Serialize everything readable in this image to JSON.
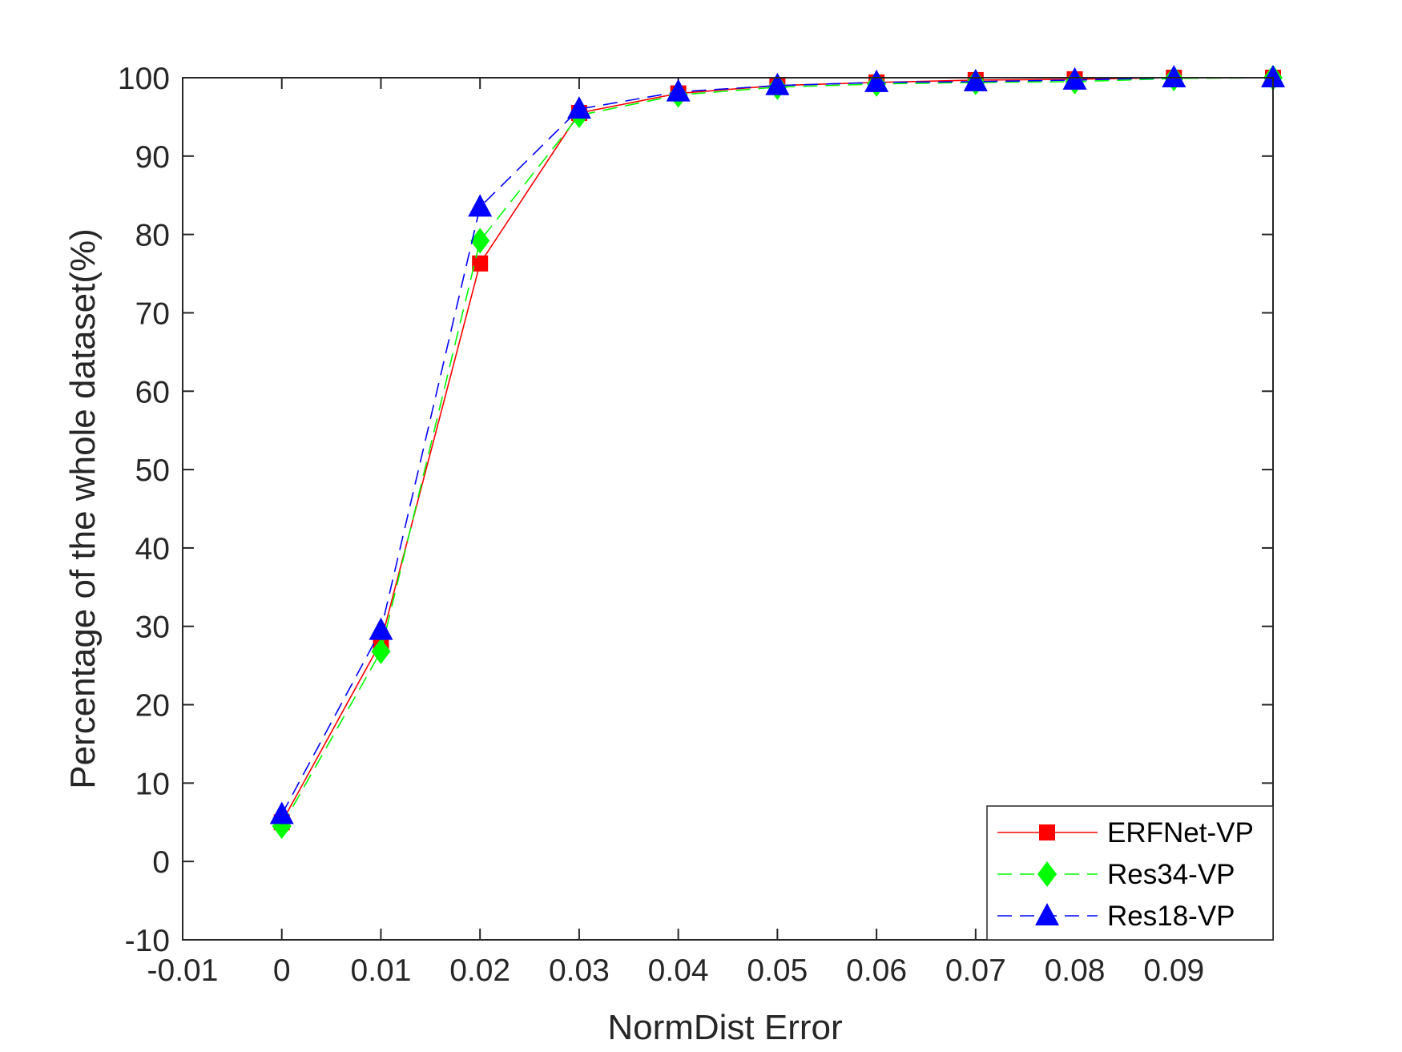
{
  "chart_data": {
    "type": "line",
    "title": "",
    "xlabel": "NormDist Error",
    "ylabel": "Percentage of the whole dataset(%)",
    "xlim": [
      -0.01,
      0.1
    ],
    "ylim": [
      -10,
      100
    ],
    "xticks": [
      -0.01,
      0,
      0.01,
      0.02,
      0.03,
      0.04,
      0.05,
      0.06,
      0.07,
      0.08,
      0.09
    ],
    "xtick_labels": [
      "-0.01",
      "0",
      "0.01",
      "0.02",
      "0.03",
      "0.04",
      "0.05",
      "0.06",
      "0.07",
      "0.08",
      "0.09"
    ],
    "yticks": [
      -10,
      0,
      10,
      20,
      30,
      40,
      50,
      60,
      70,
      80,
      90,
      100
    ],
    "ytick_labels": [
      "-10",
      "0",
      "10",
      "20",
      "30",
      "40",
      "50",
      "60",
      "70",
      "80",
      "90",
      "100"
    ],
    "grid": false,
    "legend_position": "bottom-right",
    "x": [
      0,
      0.01,
      0.02,
      0.03,
      0.04,
      0.05,
      0.06,
      0.07,
      0.08,
      0.09,
      0.1
    ],
    "series": [
      {
        "name": "ERFNet-VP",
        "color": "#ff0000",
        "marker": "square",
        "line_style": "solid",
        "values": [
          5.0,
          28.0,
          76.3,
          95.5,
          98.0,
          99.0,
          99.4,
          99.7,
          99.8,
          100.0,
          100.0
        ]
      },
      {
        "name": "Res34-VP",
        "color": "#00ff00",
        "marker": "diamond",
        "line_style": "dashed",
        "values": [
          4.5,
          26.8,
          79.2,
          95.2,
          97.8,
          98.8,
          99.2,
          99.4,
          99.5,
          99.9,
          100.0
        ]
      },
      {
        "name": "Res18-VP",
        "color": "#0000ff",
        "marker": "triangle",
        "line_style": "dashed",
        "values": [
          6.0,
          29.5,
          83.5,
          96.0,
          98.2,
          99.0,
          99.4,
          99.5,
          99.7,
          100.0,
          100.0
        ]
      }
    ]
  }
}
